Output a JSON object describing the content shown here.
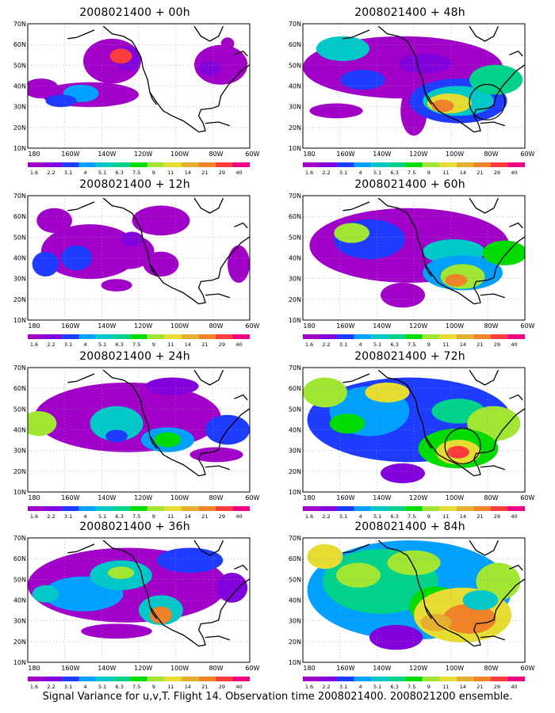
{
  "figure": {
    "footer": "Signal Variance for u,v,T. Flight 14. Observation time 2008021400. 2008021200 ensemble."
  },
  "axes": {
    "lat_labels": [
      "70N",
      "60N",
      "50N",
      "40N",
      "30N",
      "20N",
      "10N"
    ],
    "lon_labels": [
      "180",
      "160W",
      "140W",
      "120W",
      "100W",
      "80W",
      "60W"
    ]
  },
  "colorbar": {
    "labels": [
      "1.6",
      "2.2",
      "3.1",
      "4",
      "5.1",
      "6.3",
      "7.5",
      "9",
      "11",
      "14",
      "21",
      "29",
      "40"
    ],
    "colors": [
      "#a000c8",
      "#8200dc",
      "#1e3cff",
      "#00a0ff",
      "#00c8c8",
      "#00d28c",
      "#00dc00",
      "#a0e632",
      "#e6dc32",
      "#e6af2d",
      "#f08228",
      "#fa3c3c",
      "#f00082"
    ]
  },
  "panels": [
    {
      "title": "2008021400 + 00h"
    },
    {
      "title": "2008021400 + 48h"
    },
    {
      "title": "2008021400 + 12h"
    },
    {
      "title": "2008021400 + 60h"
    },
    {
      "title": "2008021400 + 24h"
    },
    {
      "title": "2008021400 + 72h"
    },
    {
      "title": "2008021400 + 36h"
    },
    {
      "title": "2008021400 + 84h"
    }
  ]
}
